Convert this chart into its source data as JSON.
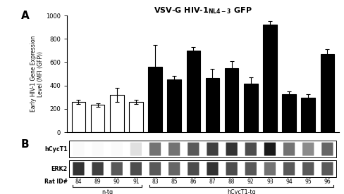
{
  "title": "VSV-G HIV-1$_{NL4-3}$ GFP",
  "ylabel": "Early HIV-1 Gene Expression\nLevel (MFI (GFP))",
  "rat_ids": [
    "84",
    "89",
    "90",
    "91",
    "83",
    "85",
    "86",
    "87",
    "88",
    "92",
    "93",
    "94",
    "95",
    "96"
  ],
  "bar_values": [
    260,
    235,
    320,
    260,
    560,
    450,
    700,
    465,
    550,
    415,
    920,
    325,
    298,
    670
  ],
  "bar_errors": [
    20,
    15,
    60,
    18,
    185,
    35,
    30,
    75,
    60,
    55,
    35,
    25,
    30,
    40
  ],
  "bar_colors": [
    "white",
    "white",
    "white",
    "white",
    "black",
    "black",
    "black",
    "black",
    "black",
    "black",
    "black",
    "black",
    "black",
    "black"
  ],
  "bar_edgecolors": [
    "black",
    "black",
    "black",
    "black",
    "black",
    "black",
    "black",
    "black",
    "black",
    "black",
    "black",
    "black",
    "black",
    "black"
  ],
  "ylim": [
    0,
    1000
  ],
  "yticks": [
    0,
    200,
    400,
    600,
    800,
    1000
  ],
  "panel_a_label": "A",
  "panel_b_label": "B",
  "hcyct1_label": "hCycT1",
  "erk2_label": "ERK2",
  "rat_id_label": "Rat ID#",
  "ntg_label": "n-tg",
  "hcyct1tg_label": "hCycT1-tg",
  "hcyct1_band_intensities": [
    0.02,
    0.02,
    0.02,
    0.12,
    0.55,
    0.55,
    0.65,
    0.75,
    0.8,
    0.7,
    0.9,
    0.55,
    0.45,
    0.6
  ],
  "erk2_band_intensities": [
    0.8,
    0.75,
    0.65,
    0.7,
    0.65,
    0.6,
    0.7,
    0.8,
    0.7,
    0.65,
    0.55,
    0.65,
    0.65,
    0.65
  ],
  "background_color": "white",
  "figure_width": 4.88,
  "figure_height": 2.76
}
